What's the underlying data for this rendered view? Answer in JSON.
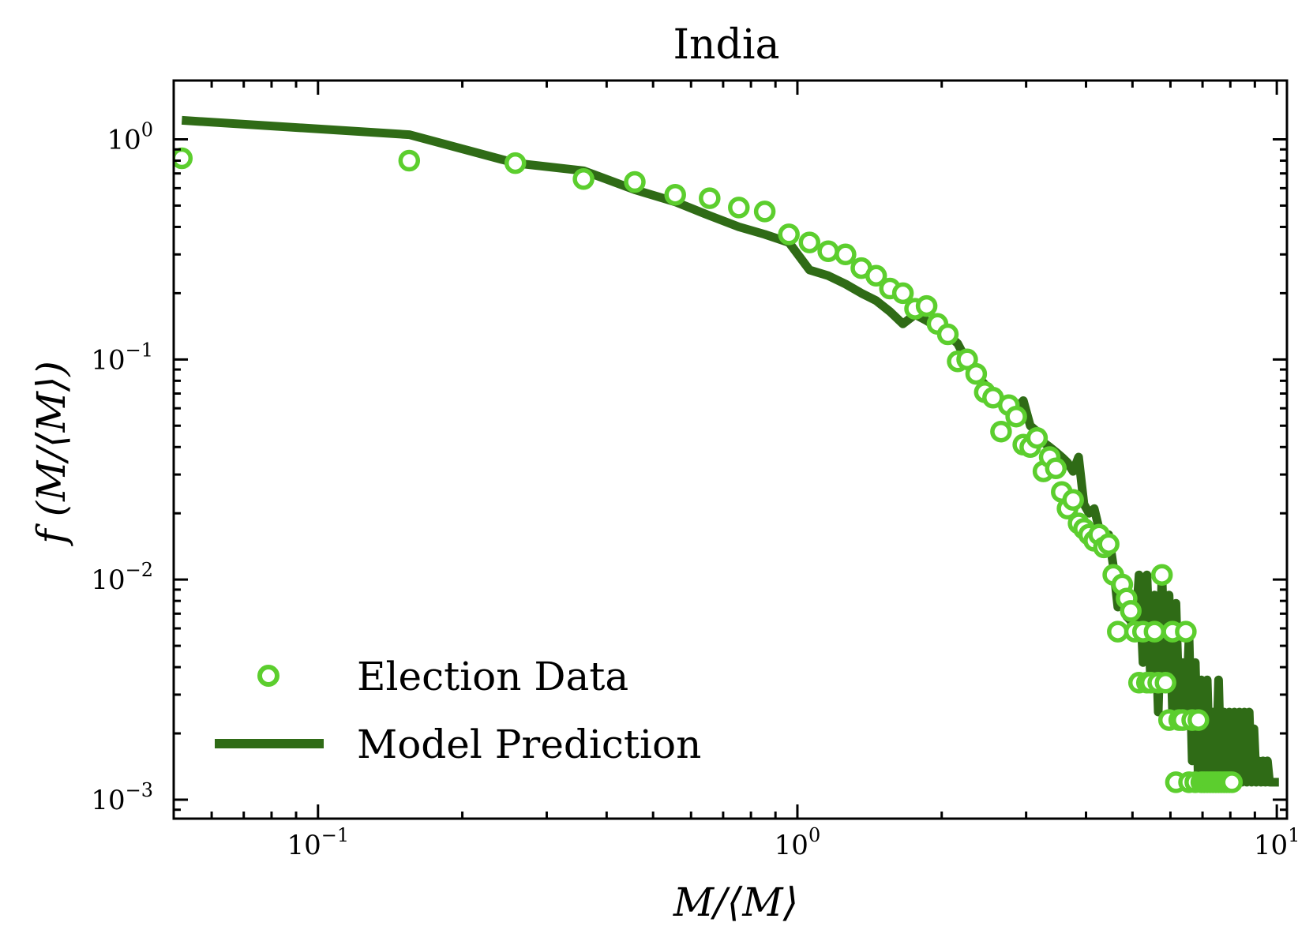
{
  "chart_data": {
    "type": "scatter",
    "title": "India",
    "xlabel": "M/⟨M⟩",
    "ylabel": "f (M/⟨M⟩)",
    "xscale": "log",
    "yscale": "log",
    "xlim": [
      0.05,
      10.5
    ],
    "ylim": [
      0.00082,
      1.85
    ],
    "x_ticks": [
      {
        "value": 0.1,
        "base": "10",
        "exp": "−1"
      },
      {
        "value": 1,
        "base": "10",
        "exp": "0"
      },
      {
        "value": 10,
        "base": "10",
        "exp": "1"
      }
    ],
    "y_ticks": [
      {
        "value": 1,
        "base": "10",
        "exp": "0"
      },
      {
        "value": 0.1,
        "base": "10",
        "exp": "−1"
      },
      {
        "value": 0.01,
        "base": "10",
        "exp": "−2"
      },
      {
        "value": 0.001,
        "base": "10",
        "exp": "−3"
      }
    ],
    "grid": false,
    "legend_position": "lower-left",
    "colors": {
      "data": "#5cce2e",
      "model": "#2f6b16",
      "axes": "#000000"
    },
    "series": [
      {
        "name": "Election Data",
        "kind": "markers",
        "x": [
          0.052,
          0.155,
          0.258,
          0.358,
          0.458,
          0.556,
          0.656,
          0.755,
          0.855,
          0.96,
          1.06,
          1.16,
          1.26,
          1.36,
          1.46,
          1.56,
          1.66,
          1.76,
          1.86,
          1.96,
          2.06,
          2.16,
          2.26,
          2.36,
          2.46,
          2.56,
          2.66,
          2.76,
          2.86,
          2.96,
          3.06,
          3.16,
          3.26,
          3.36,
          3.46,
          3.56,
          3.66,
          3.76,
          3.86,
          3.96,
          4.06,
          4.16,
          4.26,
          4.36,
          4.46,
          4.56,
          4.66,
          4.76,
          4.86,
          4.96,
          5.06,
          5.16,
          5.26,
          5.36,
          5.46,
          5.56,
          5.66,
          5.76,
          5.86,
          5.96,
          6.06,
          6.16,
          6.26,
          6.36,
          6.46,
          6.56,
          6.66,
          6.76,
          6.86,
          6.96,
          7.06,
          7.16,
          7.26,
          7.36,
          7.46,
          7.56,
          7.66,
          7.76,
          7.86,
          7.96,
          8.06
        ],
        "y": [
          0.82,
          0.8,
          0.78,
          0.66,
          0.64,
          0.56,
          0.54,
          0.49,
          0.47,
          0.37,
          0.34,
          0.31,
          0.3,
          0.26,
          0.24,
          0.21,
          0.2,
          0.17,
          0.175,
          0.145,
          0.13,
          0.098,
          0.1,
          0.086,
          0.071,
          0.067,
          0.047,
          0.062,
          0.055,
          0.041,
          0.04,
          0.044,
          0.031,
          0.036,
          0.032,
          0.025,
          0.021,
          0.023,
          0.018,
          0.017,
          0.016,
          0.015,
          0.016,
          0.014,
          0.0145,
          0.0105,
          0.0058,
          0.0095,
          0.0082,
          0.0072,
          0.0058,
          0.0034,
          0.0058,
          0.0034,
          0.0034,
          0.0058,
          0.0034,
          0.0105,
          0.0034,
          0.0023,
          0.0058,
          0.0012,
          0.0023,
          0.0023,
          0.0058,
          0.0012,
          0.0023,
          0.0012,
          0.0023,
          0.0012,
          0.0012,
          0.0012,
          0.0012,
          0.0012,
          0.0012,
          0.0012,
          0.0012,
          0.0012,
          0.0012,
          0.0012,
          0.0012
        ]
      },
      {
        "name": "Model Prediction",
        "kind": "line",
        "x": [
          0.052,
          0.155,
          0.258,
          0.358,
          0.458,
          0.556,
          0.656,
          0.755,
          0.855,
          0.96,
          1.06,
          1.16,
          1.26,
          1.36,
          1.46,
          1.56,
          1.66,
          1.76,
          1.86,
          1.96,
          2.06,
          2.16,
          2.26,
          2.36,
          2.46,
          2.56,
          2.66,
          2.76,
          2.86,
          2.96,
          3.06,
          3.16,
          3.26,
          3.36,
          3.46,
          3.56,
          3.66,
          3.76,
          3.86,
          3.96,
          4.06,
          4.16,
          4.26,
          4.36,
          4.46,
          4.56,
          4.66,
          4.76,
          4.86,
          4.96,
          5.06,
          5.16,
          5.26,
          5.36,
          5.46,
          5.56,
          5.66,
          5.76,
          5.86,
          5.96,
          6.06,
          6.16,
          6.26,
          6.36,
          6.46,
          6.56,
          6.66,
          6.76,
          6.86,
          6.96,
          7.06,
          7.16,
          7.26,
          7.36,
          7.46,
          7.56,
          7.66,
          7.76,
          7.86,
          7.96,
          8.06,
          8.16,
          8.26,
          8.36,
          8.46,
          8.56,
          8.66,
          8.76,
          8.86,
          8.96,
          9.06,
          9.16,
          9.26,
          9.36,
          9.46,
          9.56,
          9.66,
          9.76,
          9.86,
          9.96,
          10.1
        ],
        "y": [
          1.22,
          1.05,
          0.78,
          0.72,
          0.59,
          0.52,
          0.45,
          0.4,
          0.37,
          0.34,
          0.255,
          0.24,
          0.22,
          0.2,
          0.185,
          0.165,
          0.145,
          0.16,
          0.15,
          0.14,
          0.13,
          0.118,
          0.098,
          0.085,
          0.077,
          0.07,
          0.065,
          0.062,
          0.06,
          0.065,
          0.05,
          0.047,
          0.042,
          0.04,
          0.038,
          0.036,
          0.034,
          0.031,
          0.036,
          0.022,
          0.02,
          0.021,
          0.017,
          0.016,
          0.016,
          0.0115,
          0.0075,
          0.0095,
          0.0068,
          0.0065,
          0.0055,
          0.0105,
          0.0042,
          0.0105,
          0.0032,
          0.0085,
          0.0025,
          0.0105,
          0.0032,
          0.0085,
          0.0025,
          0.0078,
          0.0025,
          0.0042,
          0.0022,
          0.0055,
          0.0015,
          0.0042,
          0.0012,
          0.0035,
          0.0012,
          0.0035,
          0.0012,
          0.0025,
          0.0012,
          0.0035,
          0.0012,
          0.0025,
          0.0012,
          0.0025,
          0.0012,
          0.0025,
          0.0012,
          0.0025,
          0.0012,
          0.0025,
          0.0012,
          0.0025,
          0.0012,
          0.0021,
          0.0012,
          0.0015,
          0.0012,
          0.0015,
          0.0012,
          0.0015,
          0.0012,
          0.0012,
          0.0012,
          0.0012,
          0.0012
        ]
      }
    ]
  }
}
